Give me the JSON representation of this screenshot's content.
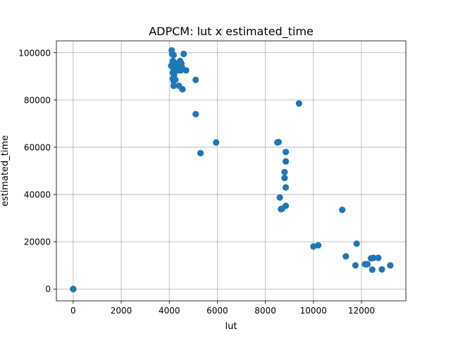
{
  "chart_data": {
    "type": "scatter",
    "title": "ADPCM: lut x estimated_time",
    "xlabel": "lut",
    "ylabel": "estimated_time",
    "xlim": [
      -700,
      13850
    ],
    "ylim": [
      -5000,
      105000
    ],
    "grid": true,
    "marker_color": "#1f77b4",
    "x_ticks": [
      0,
      2000,
      4000,
      6000,
      8000,
      10000,
      12000
    ],
    "x_tick_labels": [
      "0",
      "2000",
      "4000",
      "6000",
      "8000",
      "10000",
      "12000"
    ],
    "y_ticks": [
      0,
      20000,
      40000,
      60000,
      80000,
      100000
    ],
    "y_tick_labels": [
      "0",
      "20000",
      "40000",
      "60000",
      "80000",
      "100000"
    ],
    "points": [
      [
        0,
        0
      ],
      [
        0,
        0
      ],
      [
        0,
        0
      ],
      [
        4100,
        101000
      ],
      [
        4120,
        99500
      ],
      [
        4180,
        99000
      ],
      [
        4600,
        99500
      ],
      [
        4080,
        94500
      ],
      [
        4150,
        96500
      ],
      [
        4200,
        96000
      ],
      [
        4250,
        95000
      ],
      [
        4300,
        94000
      ],
      [
        4180,
        93000
      ],
      [
        4350,
        92500
      ],
      [
        4150,
        91500
      ],
      [
        4200,
        90500
      ],
      [
        4450,
        96500
      ],
      [
        4500,
        95500
      ],
      [
        4520,
        94000
      ],
      [
        4480,
        92500
      ],
      [
        4700,
        92500
      ],
      [
        4150,
        89000
      ],
      [
        4250,
        88500
      ],
      [
        4180,
        88000
      ],
      [
        4180,
        86000
      ],
      [
        4400,
        86000
      ],
      [
        4550,
        84500
      ],
      [
        5100,
        88500
      ],
      [
        5100,
        74000
      ],
      [
        5950,
        62000
      ],
      [
        5300,
        57500
      ],
      [
        8500,
        62000
      ],
      [
        8550,
        62200
      ],
      [
        8850,
        58000
      ],
      [
        8850,
        54000
      ],
      [
        8800,
        49500
      ],
      [
        8800,
        47000
      ],
      [
        8850,
        43000
      ],
      [
        8600,
        38700
      ],
      [
        8850,
        35200
      ],
      [
        8700,
        34000
      ],
      [
        8650,
        33800
      ],
      [
        9400,
        78500
      ],
      [
        10000,
        18000
      ],
      [
        10200,
        18500
      ],
      [
        11200,
        33500
      ],
      [
        11800,
        19200
      ],
      [
        11350,
        13800
      ],
      [
        12400,
        13000
      ],
      [
        12500,
        13200
      ],
      [
        12700,
        13200
      ],
      [
        12150,
        10500
      ],
      [
        12250,
        10500
      ],
      [
        11750,
        10000
      ],
      [
        13200,
        10000
      ],
      [
        12450,
        8200
      ],
      [
        12850,
        8300
      ]
    ]
  }
}
